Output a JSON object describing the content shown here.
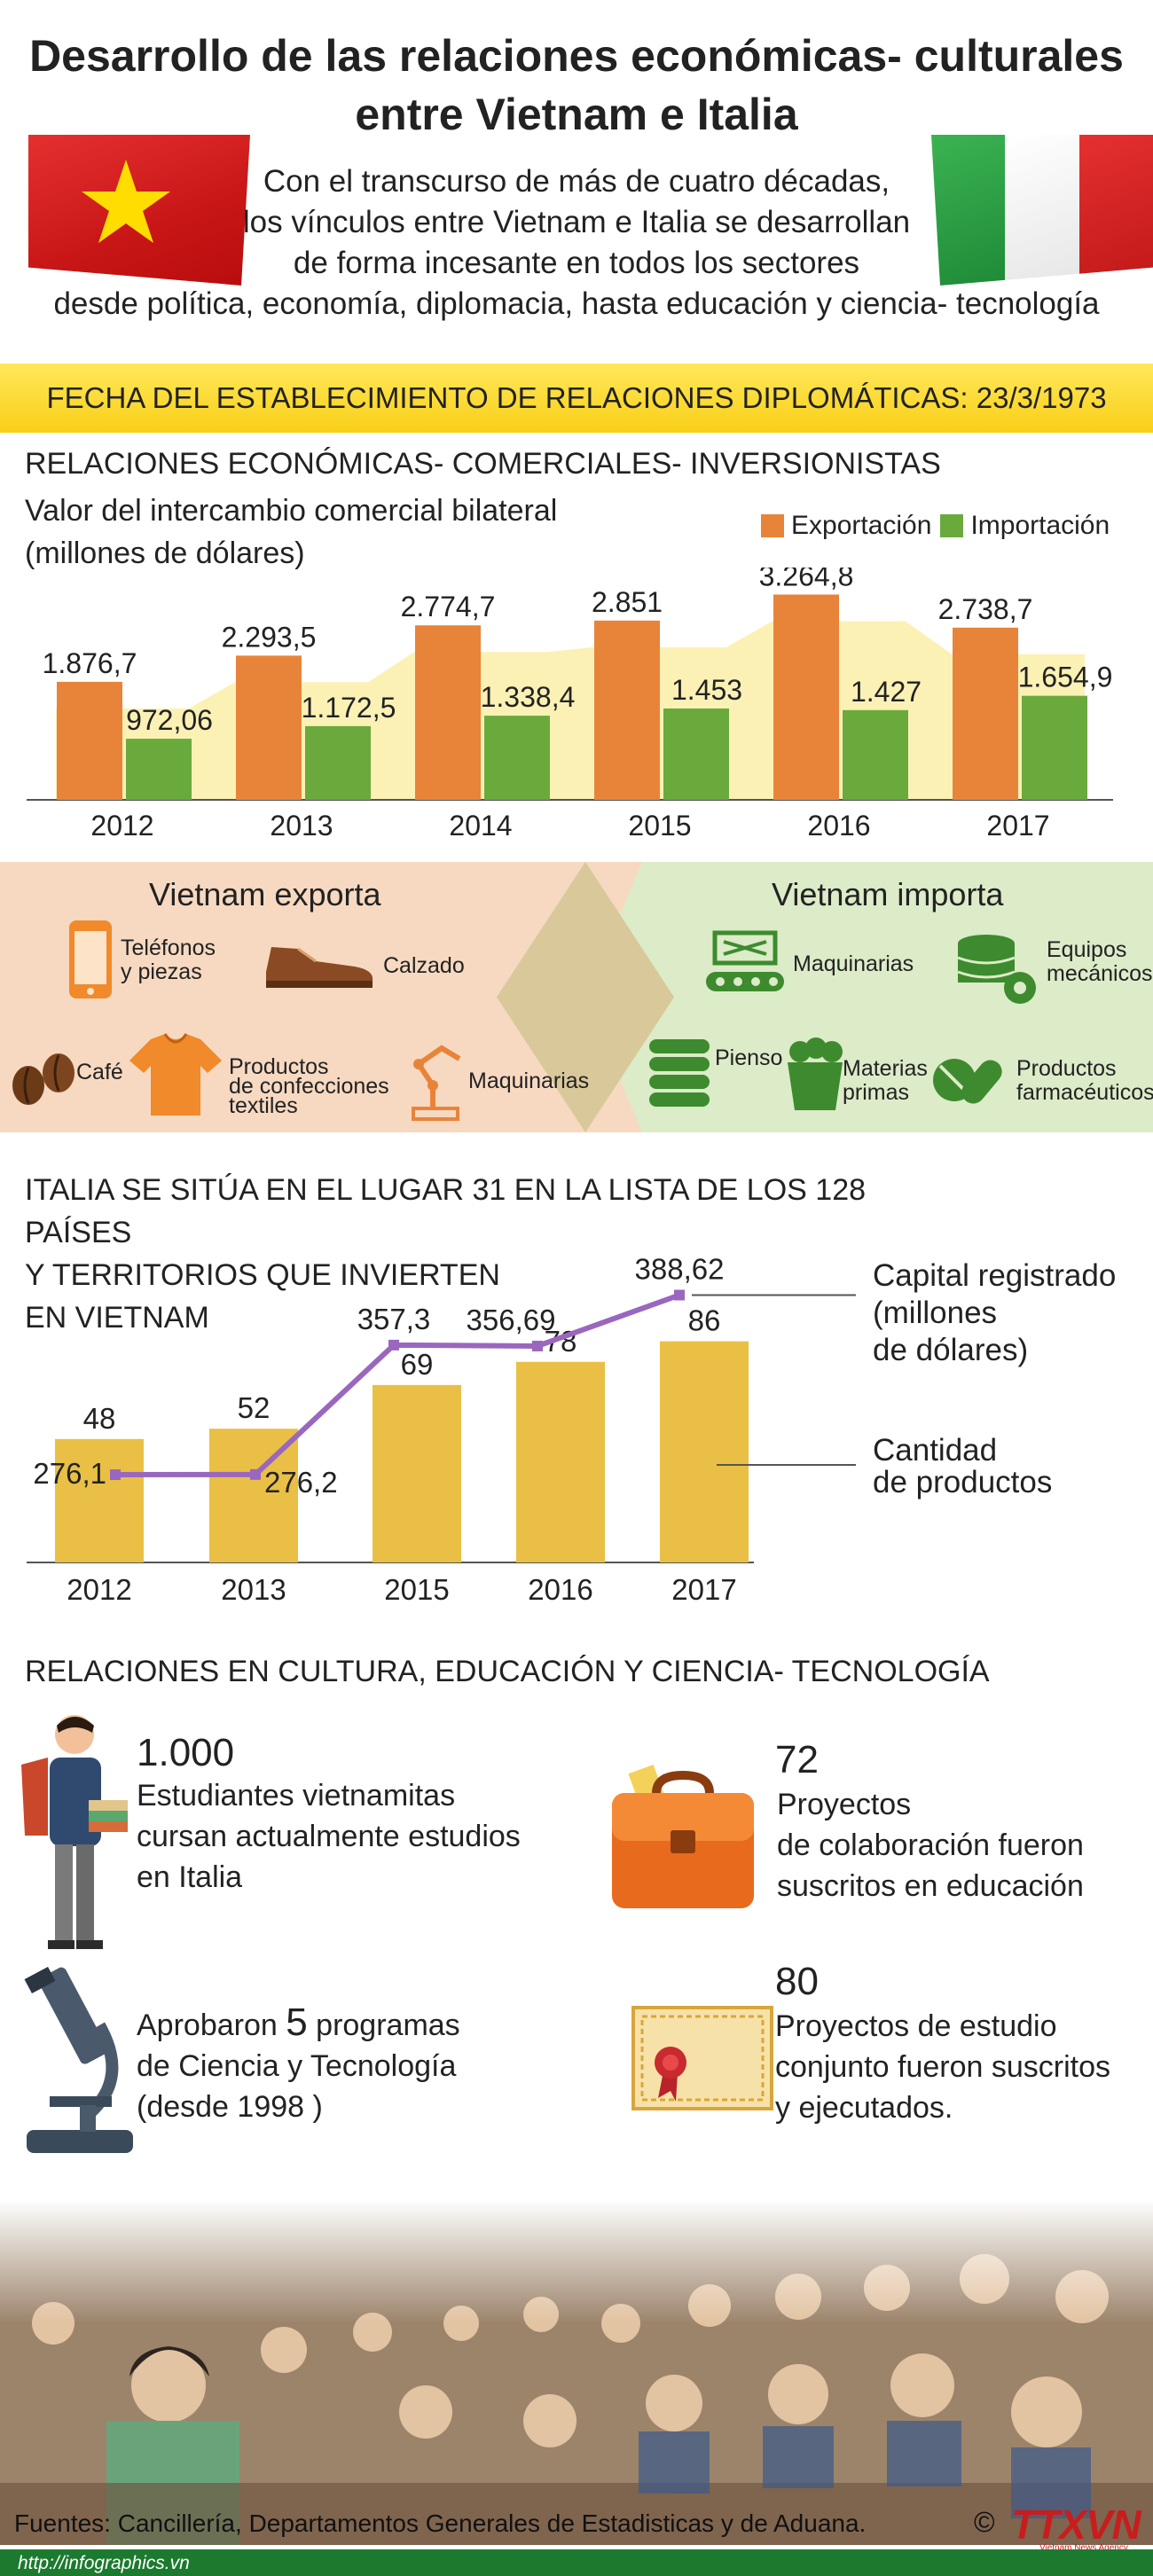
{
  "header": {
    "title_line1": "Desarrollo de las relaciones económicas- culturales",
    "title_line2": "entre Vietnam e Italia",
    "intro_lines": [
      "Con el transcurso de más de cuatro décadas,",
      "los vínculos entre Vietnam e Italia se desarrollan",
      "de forma incesante en todos los sectores",
      "desde política, economía, diplomacia, hasta educación y ciencia- tecnología"
    ]
  },
  "date_band": {
    "text": "FECHA DEL ESTABLECIMIENTO DE RELACIONES DIPLOMÁTICAS: 23/3/1973"
  },
  "section1": {
    "title": "RELACIONES ECONÓMICAS- COMERCIALES- INVERSIONISTAS",
    "subtitle_line1": "Valor del intercambio comercial bilateral",
    "subtitle_line2": "(millones de dólares)",
    "legend_export": "Exportación",
    "legend_import": "Importación"
  },
  "trade": {
    "export_title": "Vietnam exporta",
    "import_title": "Vietnam importa",
    "exports": {
      "phones_1": "Teléfonos",
      "phones_2": "y piezas",
      "shoes": "Calzado",
      "coffee": "Café",
      "textiles_1": "Productos",
      "textiles_2": "de confecciones",
      "textiles_3": "textiles",
      "machinery": "Maquinarias"
    },
    "imports": {
      "machinery": "Maquinarias",
      "equipment_1": "Equipos",
      "equipment_2": "mecánicos",
      "feed": "Pienso",
      "materials_1": "Materias",
      "materials_2": "primas",
      "pharma_1": "Productos",
      "pharma_2": "farmacéuticos"
    }
  },
  "section2": {
    "title_line1": "ITALIA SE SITÚA EN EL LUGAR 31 EN LA LISTA DE LOS 128 PAÍSES",
    "title_line2": "Y TERRITORIOS QUE INVIERTEN",
    "title_line3": "EN VIETNAM",
    "note_capital_1": "Capital registrado",
    "note_capital_2": "(millones",
    "note_capital_3": "de dólares)",
    "note_count_1": "Cantidad",
    "note_count_2": "de productos"
  },
  "section3": {
    "title": "RELACIONES EN CULTURA, EDUCACIÓN Y CIENCIA- TECNOLOGÍA",
    "students_num": "1.000",
    "students_1": "Estudiantes vietnamitas",
    "students_2": "cursan actualmente estudios",
    "students_3": "en Italia",
    "projects_num": "72",
    "projects_1": "Proyectos",
    "projects_2": "de colaboración fueron",
    "projects_3": "suscritos en educación",
    "programs_pre": "Aprobaron ",
    "programs_num": "5",
    "programs_post": " programas",
    "programs_2": "de Ciencia y Tecnología",
    "programs_3": " (desde 1998 )",
    "joint_num": "80",
    "joint_1": "Proyectos de estudio",
    "joint_2": "conjunto fueron suscritos",
    "joint_3": "y ejecutados."
  },
  "footer": {
    "sources": "Fuentes: Cancillería, Departamentos Generales de Estadisticas y de Aduana.",
    "copyright": "©",
    "logo": "TTXVN",
    "logo_sub": "Vietnam News Agency",
    "url": "http://infographics.vn"
  },
  "colors": {
    "export": "#e8843a",
    "import": "#6aaa3c",
    "band_yellow": "#f9cf17",
    "bar_yellow": "#eabf45",
    "line_purple": "#9a67bf",
    "vn_red": "#d51e1e",
    "vn_star": "#ffdd00",
    "it_green": "#2e9a45",
    "it_white": "#f4f4f4",
    "it_red": "#d72b2b"
  },
  "chart_data": [
    {
      "type": "bar",
      "categories": [
        "2012",
        "2013",
        "2014",
        "2015",
        "2016",
        "2017"
      ],
      "series": [
        {
          "name": "Exportación",
          "values": [
            1876.7,
            2293.5,
            2774.7,
            2851,
            3264.8,
            2738.7
          ],
          "labels": [
            "1.876,7",
            "2.293,5",
            "2.774,7",
            "2.851",
            "3.264,8",
            "2.738,7"
          ]
        },
        {
          "name": "Importación",
          "values": [
            972.06,
            1172.5,
            1338.4,
            1453,
            1427,
            1654.9
          ],
          "labels": [
            "972,06",
            "1.172,5",
            "1.338,4",
            "1.453",
            "1.427",
            "1.654,9"
          ]
        }
      ],
      "title": "Valor del intercambio comercial bilateral",
      "ylabel": "(millones de dólares)",
      "ylim": [
        0,
        3300
      ]
    },
    {
      "type": "bar",
      "categories": [
        "2012",
        "2013",
        "2015",
        "2016",
        "2017"
      ],
      "series": [
        {
          "name": "Cantidad de productos",
          "values": [
            48,
            52,
            69,
            78,
            86
          ],
          "labels": [
            "48",
            "52",
            "69",
            "78",
            "86"
          ]
        },
        {
          "name": "Capital registrado (millones de dólares)",
          "type": "line",
          "values": [
            276.1,
            276.2,
            357.3,
            356.69,
            388.62
          ],
          "labels": [
            "276,1",
            "276,2",
            "357,3",
            "356,69",
            "388,62"
          ]
        }
      ]
    }
  ]
}
